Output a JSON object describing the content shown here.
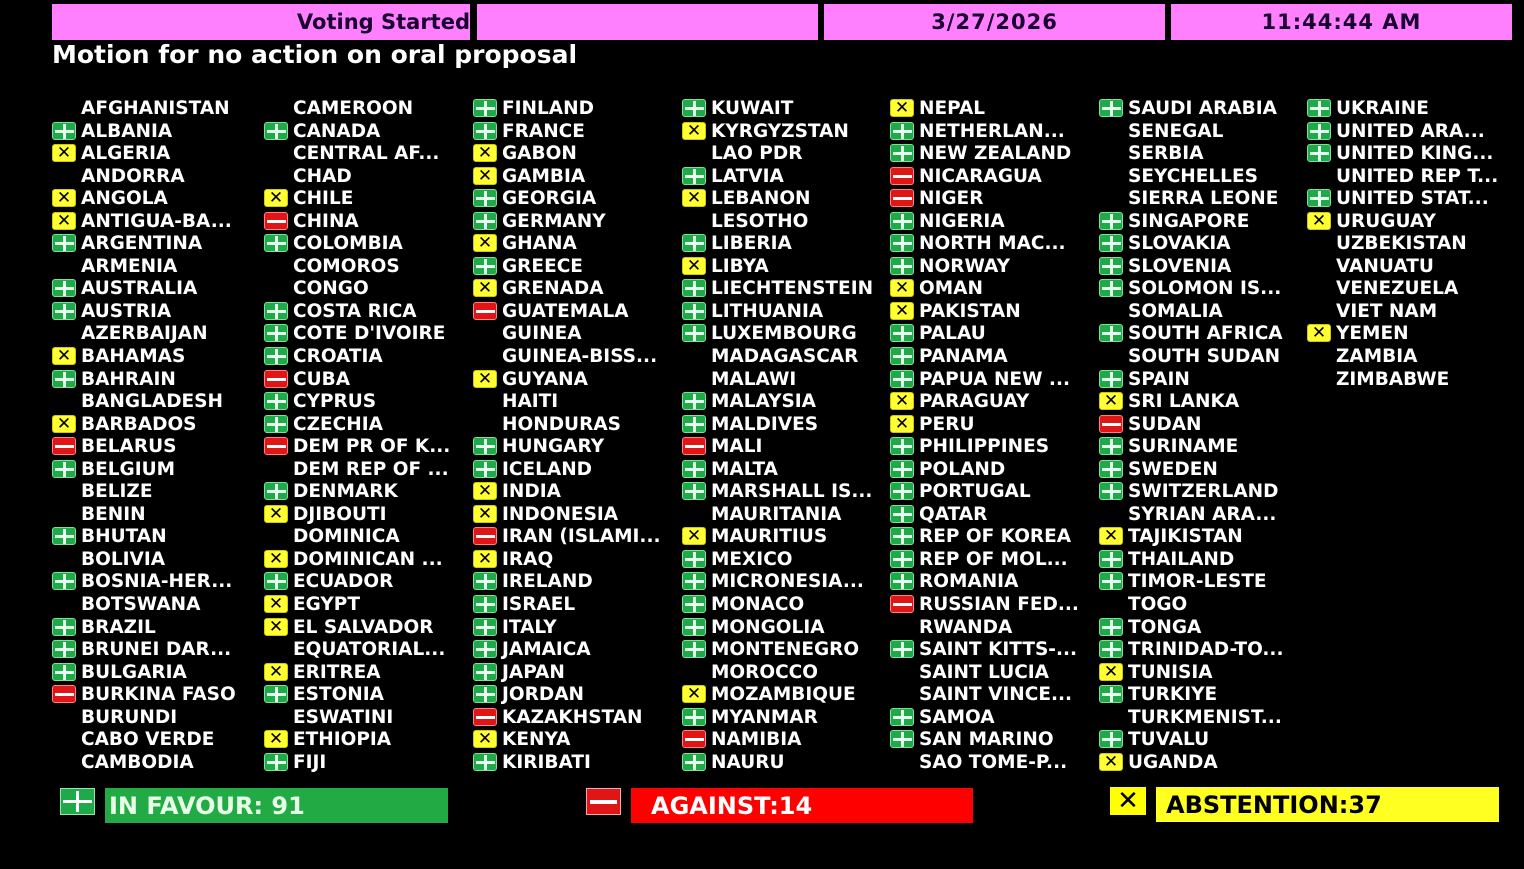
{
  "header": {
    "status": "Voting Started",
    "blank": "",
    "date": "3/27/2026",
    "time": "11:44:44 AM"
  },
  "title": "Motion for no action on oral proposal",
  "colors": {
    "header_bg": "#ff80ff",
    "yes": "#22aa44",
    "no": "#ff0000",
    "abstain": "#ffff22",
    "background": "#000000"
  },
  "vote_icons": {
    "yes": "plus-icon",
    "no": "minus-icon",
    "abstain": "x-icon"
  },
  "totals": {
    "in_favour": "IN FAVOUR: 91",
    "against": "AGAINST:14",
    "abstention": "ABSTENTION:37"
  },
  "columns": [
    [
      {
        "name": "AFGHANISTAN",
        "vote": ""
      },
      {
        "name": "ALBANIA",
        "vote": "yes"
      },
      {
        "name": "ALGERIA",
        "vote": "abstain"
      },
      {
        "name": "ANDORRA",
        "vote": ""
      },
      {
        "name": "ANGOLA",
        "vote": "abstain"
      },
      {
        "name": "ANTIGUA-BA...",
        "vote": "abstain"
      },
      {
        "name": "ARGENTINA",
        "vote": "yes"
      },
      {
        "name": "ARMENIA",
        "vote": ""
      },
      {
        "name": "AUSTRALIA",
        "vote": "yes"
      },
      {
        "name": "AUSTRIA",
        "vote": "yes"
      },
      {
        "name": "AZERBAIJAN",
        "vote": ""
      },
      {
        "name": "BAHAMAS",
        "vote": "abstain"
      },
      {
        "name": "BAHRAIN",
        "vote": "yes"
      },
      {
        "name": "BANGLADESH",
        "vote": ""
      },
      {
        "name": "BARBADOS",
        "vote": "abstain"
      },
      {
        "name": "BELARUS",
        "vote": "no"
      },
      {
        "name": "BELGIUM",
        "vote": "yes"
      },
      {
        "name": "BELIZE",
        "vote": ""
      },
      {
        "name": "BENIN",
        "vote": ""
      },
      {
        "name": "BHUTAN",
        "vote": "yes"
      },
      {
        "name": "BOLIVIA",
        "vote": ""
      },
      {
        "name": "BOSNIA-HER...",
        "vote": "yes"
      },
      {
        "name": "BOTSWANA",
        "vote": ""
      },
      {
        "name": "BRAZIL",
        "vote": "yes"
      },
      {
        "name": "BRUNEI DAR...",
        "vote": "yes"
      },
      {
        "name": "BULGARIA",
        "vote": "yes"
      },
      {
        "name": "BURKINA FASO",
        "vote": "no"
      },
      {
        "name": "BURUNDI",
        "vote": ""
      },
      {
        "name": "CABO VERDE",
        "vote": ""
      },
      {
        "name": "CAMBODIA",
        "vote": ""
      }
    ],
    [
      {
        "name": "CAMEROON",
        "vote": ""
      },
      {
        "name": "CANADA",
        "vote": "yes"
      },
      {
        "name": "CENTRAL AF...",
        "vote": ""
      },
      {
        "name": "CHAD",
        "vote": ""
      },
      {
        "name": "CHILE",
        "vote": "abstain"
      },
      {
        "name": "CHINA",
        "vote": "no"
      },
      {
        "name": "COLOMBIA",
        "vote": "yes"
      },
      {
        "name": "COMOROS",
        "vote": ""
      },
      {
        "name": "CONGO",
        "vote": ""
      },
      {
        "name": "COSTA RICA",
        "vote": "yes"
      },
      {
        "name": "COTE D'IVOIRE",
        "vote": "yes"
      },
      {
        "name": "CROATIA",
        "vote": "yes"
      },
      {
        "name": "CUBA",
        "vote": "no"
      },
      {
        "name": "CYPRUS",
        "vote": "yes"
      },
      {
        "name": "CZECHIA",
        "vote": "yes"
      },
      {
        "name": "DEM PR OF K...",
        "vote": "no"
      },
      {
        "name": "DEM REP OF ...",
        "vote": ""
      },
      {
        "name": "DENMARK",
        "vote": "yes"
      },
      {
        "name": "DJIBOUTI",
        "vote": "abstain"
      },
      {
        "name": "DOMINICA",
        "vote": ""
      },
      {
        "name": "DOMINICAN ...",
        "vote": "abstain"
      },
      {
        "name": "ECUADOR",
        "vote": "yes"
      },
      {
        "name": "EGYPT",
        "vote": "abstain"
      },
      {
        "name": "EL SALVADOR",
        "vote": "abstain"
      },
      {
        "name": "EQUATORIAL...",
        "vote": ""
      },
      {
        "name": "ERITREA",
        "vote": "abstain"
      },
      {
        "name": "ESTONIA",
        "vote": "yes"
      },
      {
        "name": "ESWATINI",
        "vote": ""
      },
      {
        "name": "ETHIOPIA",
        "vote": "abstain"
      },
      {
        "name": "FIJI",
        "vote": "yes"
      }
    ],
    [
      {
        "name": "FINLAND",
        "vote": "yes"
      },
      {
        "name": "FRANCE",
        "vote": "yes"
      },
      {
        "name": "GABON",
        "vote": "abstain"
      },
      {
        "name": "GAMBIA",
        "vote": "abstain"
      },
      {
        "name": "GEORGIA",
        "vote": "yes"
      },
      {
        "name": "GERMANY",
        "vote": "yes"
      },
      {
        "name": "GHANA",
        "vote": "abstain"
      },
      {
        "name": "GREECE",
        "vote": "yes"
      },
      {
        "name": "GRENADA",
        "vote": "abstain"
      },
      {
        "name": "GUATEMALA",
        "vote": "no"
      },
      {
        "name": "GUINEA",
        "vote": ""
      },
      {
        "name": "GUINEA-BISS...",
        "vote": ""
      },
      {
        "name": "GUYANA",
        "vote": "abstain"
      },
      {
        "name": "HAITI",
        "vote": ""
      },
      {
        "name": "HONDURAS",
        "vote": ""
      },
      {
        "name": "HUNGARY",
        "vote": "yes"
      },
      {
        "name": "ICELAND",
        "vote": "yes"
      },
      {
        "name": "INDIA",
        "vote": "abstain"
      },
      {
        "name": "INDONESIA",
        "vote": "abstain"
      },
      {
        "name": "IRAN (ISLAMI...",
        "vote": "no"
      },
      {
        "name": "IRAQ",
        "vote": "abstain"
      },
      {
        "name": "IRELAND",
        "vote": "yes"
      },
      {
        "name": "ISRAEL",
        "vote": "yes"
      },
      {
        "name": "ITALY",
        "vote": "yes"
      },
      {
        "name": "JAMAICA",
        "vote": "yes"
      },
      {
        "name": "JAPAN",
        "vote": "yes"
      },
      {
        "name": "JORDAN",
        "vote": "yes"
      },
      {
        "name": "KAZAKHSTAN",
        "vote": "no"
      },
      {
        "name": "KENYA",
        "vote": "abstain"
      },
      {
        "name": "KIRIBATI",
        "vote": "yes"
      }
    ],
    [
      {
        "name": "KUWAIT",
        "vote": "yes"
      },
      {
        "name": "KYRGYZSTAN",
        "vote": "abstain"
      },
      {
        "name": "LAO PDR",
        "vote": ""
      },
      {
        "name": "LATVIA",
        "vote": "yes"
      },
      {
        "name": "LEBANON",
        "vote": "abstain"
      },
      {
        "name": "LESOTHO",
        "vote": ""
      },
      {
        "name": "LIBERIA",
        "vote": "yes"
      },
      {
        "name": "LIBYA",
        "vote": "abstain"
      },
      {
        "name": "LIECHTENSTEIN",
        "vote": "yes"
      },
      {
        "name": "LITHUANIA",
        "vote": "yes"
      },
      {
        "name": "LUXEMBOURG",
        "vote": "yes"
      },
      {
        "name": "MADAGASCAR",
        "vote": ""
      },
      {
        "name": "MALAWI",
        "vote": ""
      },
      {
        "name": "MALAYSIA",
        "vote": "yes"
      },
      {
        "name": "MALDIVES",
        "vote": "yes"
      },
      {
        "name": "MALI",
        "vote": "no"
      },
      {
        "name": "MALTA",
        "vote": "yes"
      },
      {
        "name": "MARSHALL IS...",
        "vote": "yes"
      },
      {
        "name": "MAURITANIA",
        "vote": ""
      },
      {
        "name": "MAURITIUS",
        "vote": "abstain"
      },
      {
        "name": "MEXICO",
        "vote": "yes"
      },
      {
        "name": "MICRONESIA...",
        "vote": "yes"
      },
      {
        "name": "MONACO",
        "vote": "yes"
      },
      {
        "name": "MONGOLIA",
        "vote": "yes"
      },
      {
        "name": "MONTENEGRO",
        "vote": "yes"
      },
      {
        "name": "MOROCCO",
        "vote": ""
      },
      {
        "name": "MOZAMBIQUE",
        "vote": "abstain"
      },
      {
        "name": "MYANMAR",
        "vote": "yes"
      },
      {
        "name": "NAMIBIA",
        "vote": "no"
      },
      {
        "name": "NAURU",
        "vote": "yes"
      }
    ],
    [
      {
        "name": "NEPAL",
        "vote": "abstain"
      },
      {
        "name": "NETHERLAN...",
        "vote": "yes"
      },
      {
        "name": "NEW ZEALAND",
        "vote": "yes"
      },
      {
        "name": "NICARAGUA",
        "vote": "no"
      },
      {
        "name": "NIGER",
        "vote": "no"
      },
      {
        "name": "NIGERIA",
        "vote": "yes"
      },
      {
        "name": "NORTH MAC...",
        "vote": "yes"
      },
      {
        "name": "NORWAY",
        "vote": "yes"
      },
      {
        "name": "OMAN",
        "vote": "abstain"
      },
      {
        "name": "PAKISTAN",
        "vote": "abstain"
      },
      {
        "name": "PALAU",
        "vote": "yes"
      },
      {
        "name": "PANAMA",
        "vote": "yes"
      },
      {
        "name": "PAPUA NEW ...",
        "vote": "yes"
      },
      {
        "name": "PARAGUAY",
        "vote": "abstain"
      },
      {
        "name": "PERU",
        "vote": "abstain"
      },
      {
        "name": "PHILIPPINES",
        "vote": "yes"
      },
      {
        "name": "POLAND",
        "vote": "yes"
      },
      {
        "name": "PORTUGAL",
        "vote": "yes"
      },
      {
        "name": "QATAR",
        "vote": "yes"
      },
      {
        "name": "REP OF KOREA",
        "vote": "yes"
      },
      {
        "name": "REP OF MOL...",
        "vote": "yes"
      },
      {
        "name": "ROMANIA",
        "vote": "yes"
      },
      {
        "name": "RUSSIAN FED...",
        "vote": "no"
      },
      {
        "name": "RWANDA",
        "vote": ""
      },
      {
        "name": "SAINT KITTS-...",
        "vote": "yes"
      },
      {
        "name": "SAINT LUCIA",
        "vote": ""
      },
      {
        "name": "SAINT VINCE...",
        "vote": ""
      },
      {
        "name": "SAMOA",
        "vote": "yes"
      },
      {
        "name": "SAN MARINO",
        "vote": "yes"
      },
      {
        "name": "SAO TOME-P...",
        "vote": ""
      }
    ],
    [
      {
        "name": "SAUDI ARABIA",
        "vote": "yes"
      },
      {
        "name": "SENEGAL",
        "vote": ""
      },
      {
        "name": "SERBIA",
        "vote": ""
      },
      {
        "name": "SEYCHELLES",
        "vote": ""
      },
      {
        "name": "SIERRA LEONE",
        "vote": ""
      },
      {
        "name": "SINGAPORE",
        "vote": "yes"
      },
      {
        "name": "SLOVAKIA",
        "vote": "yes"
      },
      {
        "name": "SLOVENIA",
        "vote": "yes"
      },
      {
        "name": "SOLOMON IS...",
        "vote": "yes"
      },
      {
        "name": "SOMALIA",
        "vote": ""
      },
      {
        "name": "SOUTH AFRICA",
        "vote": "yes"
      },
      {
        "name": "SOUTH SUDAN",
        "vote": ""
      },
      {
        "name": "SPAIN",
        "vote": "yes"
      },
      {
        "name": "SRI LANKA",
        "vote": "abstain"
      },
      {
        "name": "SUDAN",
        "vote": "no"
      },
      {
        "name": "SURINAME",
        "vote": "yes"
      },
      {
        "name": "SWEDEN",
        "vote": "yes"
      },
      {
        "name": "SWITZERLAND",
        "vote": "yes"
      },
      {
        "name": "SYRIAN ARA...",
        "vote": ""
      },
      {
        "name": "TAJIKISTAN",
        "vote": "abstain"
      },
      {
        "name": "THAILAND",
        "vote": "yes"
      },
      {
        "name": "TIMOR-LESTE",
        "vote": "yes"
      },
      {
        "name": "TOGO",
        "vote": ""
      },
      {
        "name": "TONGA",
        "vote": "yes"
      },
      {
        "name": "TRINIDAD-TO...",
        "vote": "yes"
      },
      {
        "name": "TUNISIA",
        "vote": "abstain"
      },
      {
        "name": "TURKIYE",
        "vote": "yes"
      },
      {
        "name": "TURKMENIST...",
        "vote": ""
      },
      {
        "name": "TUVALU",
        "vote": "yes"
      },
      {
        "name": "UGANDA",
        "vote": "abstain"
      }
    ],
    [
      {
        "name": "UKRAINE",
        "vote": "yes"
      },
      {
        "name": "UNITED ARA...",
        "vote": "yes"
      },
      {
        "name": "UNITED KING...",
        "vote": "yes"
      },
      {
        "name": "UNITED REP T...",
        "vote": ""
      },
      {
        "name": "UNITED STAT...",
        "vote": "yes"
      },
      {
        "name": "URUGUAY",
        "vote": "abstain"
      },
      {
        "name": "UZBEKISTAN",
        "vote": ""
      },
      {
        "name": "VANUATU",
        "vote": ""
      },
      {
        "name": "VENEZUELA",
        "vote": ""
      },
      {
        "name": "VIET NAM",
        "vote": ""
      },
      {
        "name": "YEMEN",
        "vote": "abstain"
      },
      {
        "name": "ZAMBIA",
        "vote": ""
      },
      {
        "name": "ZIMBABWE",
        "vote": ""
      }
    ]
  ]
}
